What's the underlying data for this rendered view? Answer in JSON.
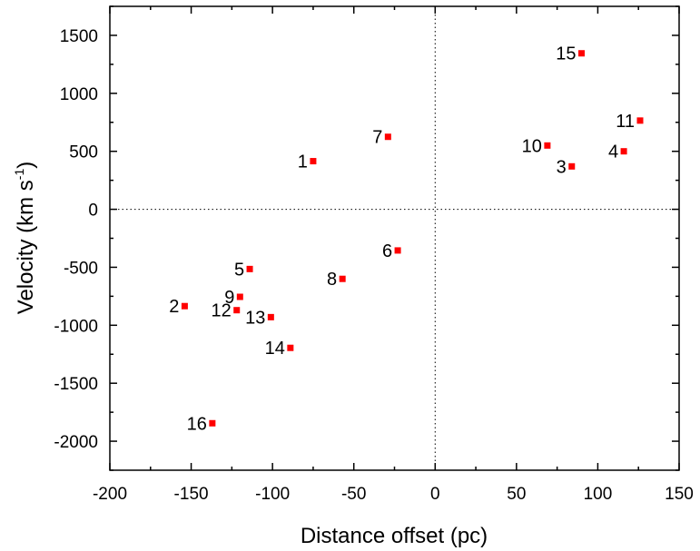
{
  "chart_data": {
    "type": "scatter",
    "title": "",
    "xlabel": "Distance offset (pc)",
    "ylabel_main": "Velocity (km s",
    "ylabel_sup": "-1",
    "ylabel_close": ")",
    "xlim": [
      -200,
      150
    ],
    "ylim": [
      -2250,
      1750
    ],
    "xticks": [
      -200,
      -150,
      -100,
      -50,
      0,
      50,
      100,
      150
    ],
    "yticks": [
      -2000,
      -1500,
      -1000,
      -500,
      0,
      500,
      1000,
      1500
    ],
    "zero_lines": "dotted",
    "grid": false,
    "marker_color": "#ff0000",
    "points": [
      {
        "label": "1",
        "x": -75,
        "y": 415
      },
      {
        "label": "2",
        "x": -154,
        "y": -835
      },
      {
        "label": "3",
        "x": 84,
        "y": 370
      },
      {
        "label": "4",
        "x": 116,
        "y": 500
      },
      {
        "label": "5",
        "x": -114,
        "y": -515
      },
      {
        "label": "6",
        "x": -23,
        "y": -355
      },
      {
        "label": "7",
        "x": -29,
        "y": 625
      },
      {
        "label": "8",
        "x": -57,
        "y": -600
      },
      {
        "label": "9",
        "x": -120,
        "y": -755
      },
      {
        "label": "10",
        "x": 69,
        "y": 550
      },
      {
        "label": "11",
        "x": 126,
        "y": 765
      },
      {
        "label": "12",
        "x": -122,
        "y": -870
      },
      {
        "label": "13",
        "x": -101,
        "y": -930
      },
      {
        "label": "14",
        "x": -89,
        "y": -1195
      },
      {
        "label": "15",
        "x": 90,
        "y": 1345
      },
      {
        "label": "16",
        "x": -137,
        "y": -1845
      }
    ]
  }
}
